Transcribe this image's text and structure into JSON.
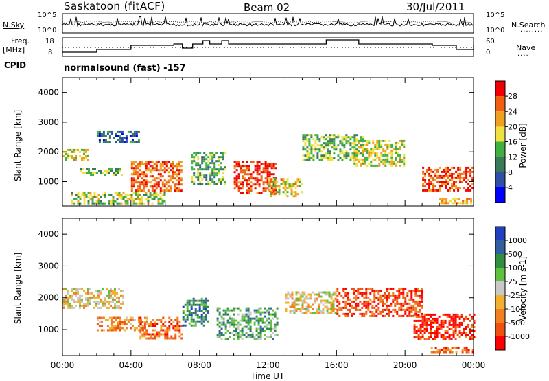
{
  "header": {
    "station": "Saskatoon (fitACF)",
    "beam": "Beam 02",
    "date": "30/Jul/2011"
  },
  "noise_panel": {
    "left_label": "N.Sky",
    "right_label": "N.Search",
    "ticks_left": [
      "10^5",
      "10^0"
    ],
    "ticks_right": [
      "10^5",
      "10^0"
    ]
  },
  "freq_panel": {
    "left_label_1": "Freq.",
    "left_label_2": "[MHz]",
    "right_label": "Nave",
    "ticks_left": [
      "18",
      "8"
    ],
    "ticks_right": [
      "60",
      "0"
    ]
  },
  "cpid": {
    "label": "CPID",
    "value": "normalsound (fast) -157"
  },
  "chart_data": [
    {
      "type": "heatmap",
      "name": "power",
      "ylabel": "Slant Range [km]",
      "xlabel": "",
      "ylim": [
        180,
        4500
      ],
      "xlim": [
        0,
        24
      ],
      "yticks": [
        "1000",
        "2000",
        "3000",
        "4000"
      ],
      "colorbar_label": "Power [dB]",
      "colorbar_ticks": [
        "28",
        "24",
        "20",
        "16",
        "12",
        "8",
        "4"
      ],
      "colors": [
        "#0000ff",
        "#3050a8",
        "#3a7a5a",
        "#40b040",
        "#f0e040",
        "#f0a020",
        "#f06010",
        "#f00000"
      ],
      "blobs": [
        {
          "t0": 0.0,
          "t1": 1.5,
          "r0": 1700,
          "r1": 2100,
          "level": 0.55
        },
        {
          "t0": 1.0,
          "t1": 3.5,
          "r0": 1200,
          "r1": 1450,
          "level": 0.45
        },
        {
          "t0": 2.0,
          "t1": 4.5,
          "r0": 2300,
          "r1": 2700,
          "level": 0.25
        },
        {
          "t0": 4.0,
          "t1": 7.0,
          "r0": 700,
          "r1": 1700,
          "level": 0.8
        },
        {
          "t0": 0.5,
          "t1": 6.0,
          "r0": 300,
          "r1": 650,
          "level": 0.5
        },
        {
          "t0": 7.5,
          "t1": 9.5,
          "r0": 900,
          "r1": 2000,
          "level": 0.4
        },
        {
          "t0": 10.0,
          "t1": 12.5,
          "r0": 600,
          "r1": 1700,
          "level": 0.9
        },
        {
          "t0": 12.0,
          "t1": 14.0,
          "r0": 500,
          "r1": 1100,
          "level": 0.6
        },
        {
          "t0": 14.0,
          "t1": 17.5,
          "r0": 1700,
          "r1": 2600,
          "level": 0.45
        },
        {
          "t0": 17.0,
          "t1": 20.0,
          "r0": 1500,
          "r1": 2400,
          "level": 0.55
        },
        {
          "t0": 21.0,
          "t1": 24.0,
          "r0": 700,
          "r1": 1500,
          "level": 0.85
        },
        {
          "t0": 22.0,
          "t1": 24.0,
          "r0": 250,
          "r1": 450,
          "level": 0.7
        }
      ]
    },
    {
      "type": "heatmap",
      "name": "velocity",
      "ylabel": "Slant Range [km]",
      "xlabel": "Time UT",
      "ylim": [
        180,
        4500
      ],
      "xlim": [
        0,
        24
      ],
      "yticks": [
        "1000",
        "2000",
        "3000",
        "4000"
      ],
      "xticks": [
        "00:00",
        "04:00",
        "08:00",
        "12:00",
        "16:00",
        "20:00",
        "00:00"
      ],
      "colorbar_label": "Velocity [m s-1]",
      "colorbar_ticks": [
        "1000",
        "500",
        "100",
        "25",
        "-25",
        "-100",
        "-500",
        "-1000"
      ],
      "colors": [
        "#ff0000",
        "#f05010",
        "#f08020",
        "#f0b030",
        "#c8c8c8",
        "#60c040",
        "#309040",
        "#3060a0",
        "#2040c0"
      ],
      "blobs": [
        {
          "t0": 0.0,
          "t1": 3.5,
          "r0": 1700,
          "r1": 2300,
          "level": 0.45
        },
        {
          "t0": 2.0,
          "t1": 5.0,
          "r0": 1000,
          "r1": 1400,
          "level": 0.3
        },
        {
          "t0": 4.5,
          "t1": 7.0,
          "r0": 700,
          "r1": 1400,
          "level": 0.25
        },
        {
          "t0": 7.0,
          "t1": 8.5,
          "r0": 1100,
          "r1": 2000,
          "level": 0.75
        },
        {
          "t0": 9.0,
          "t1": 12.5,
          "r0": 700,
          "r1": 1700,
          "level": 0.65
        },
        {
          "t0": 13.0,
          "t1": 16.0,
          "r0": 1500,
          "r1": 2200,
          "level": 0.45
        },
        {
          "t0": 16.0,
          "t1": 21.0,
          "r0": 1400,
          "r1": 2300,
          "level": 0.15
        },
        {
          "t0": 20.5,
          "t1": 24.0,
          "r0": 700,
          "r1": 1500,
          "level": 0.1
        },
        {
          "t0": 21.5,
          "t1": 24.0,
          "r0": 300,
          "r1": 450,
          "level": 0.25
        }
      ]
    }
  ]
}
